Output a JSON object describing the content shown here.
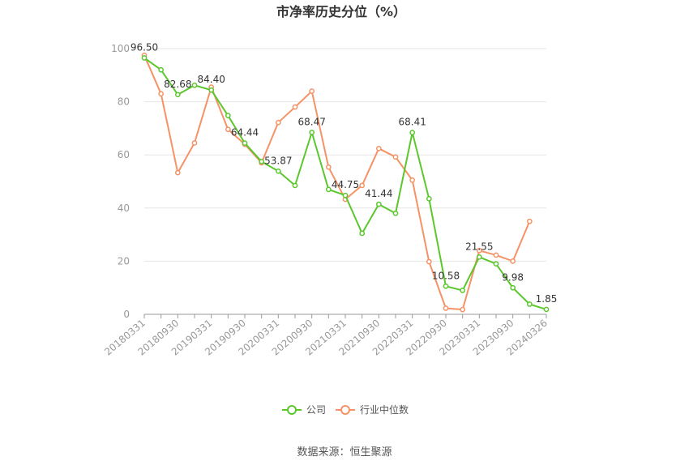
{
  "chart_data": {
    "type": "line",
    "title": "市净率历史分位（%）",
    "ylim": [
      0,
      100
    ],
    "y_ticks": [
      0,
      20,
      40,
      60,
      80,
      100
    ],
    "x_tick_labels": [
      "20180331",
      "20180930",
      "20190331",
      "20190930",
      "20200331",
      "20200930",
      "20210331",
      "20210930",
      "20220331",
      "20220930",
      "20230331",
      "20230930",
      "20240326"
    ],
    "x_points": [
      "20180331",
      "20180630",
      "20180930",
      "20181231",
      "20190331",
      "20190630",
      "20190930",
      "20191231",
      "20200331",
      "20200630",
      "20200930",
      "20201231",
      "20210331",
      "20210630",
      "20210930",
      "20211231",
      "20220331",
      "20220630",
      "20220930",
      "20221231",
      "20230331",
      "20230630",
      "20230930",
      "20231231",
      "20240326"
    ],
    "grid": "horizontal",
    "legend_position": "bottom",
    "series": [
      {
        "name": "公司",
        "color": "#5cc72d",
        "values": [
          96.5,
          92.0,
          82.68,
          86.2,
          84.4,
          74.8,
          64.44,
          57.5,
          53.87,
          48.5,
          68.47,
          47.0,
          44.75,
          30.5,
          41.44,
          38.0,
          68.41,
          43.5,
          10.58,
          9.0,
          21.55,
          19.0,
          9.98,
          3.8,
          1.85
        ],
        "labels": {
          "0": "96.50",
          "2": "82.68",
          "4": "84.40",
          "6": "64.44",
          "8": "53.87",
          "10": "68.47",
          "12": "44.75",
          "14": "41.44",
          "16": "68.41",
          "18": "10.58",
          "20": "21.55",
          "22": "9.98",
          "24": "1.85"
        }
      },
      {
        "name": "行业中位数",
        "color": "#f59266",
        "values": [
          97.5,
          83.0,
          53.3,
          64.5,
          85.5,
          69.6,
          64.0,
          57.0,
          72.2,
          78.0,
          84.0,
          55.4,
          43.3,
          48.5,
          62.4,
          59.2,
          50.5,
          19.8,
          2.3,
          1.8,
          24.0,
          22.3,
          20.0,
          35.0,
          null
        ]
      }
    ]
  },
  "source": "数据来源：恒生聚源"
}
